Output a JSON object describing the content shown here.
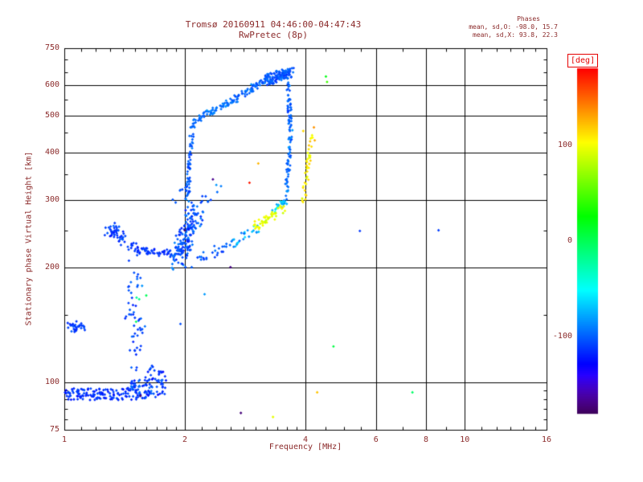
{
  "colors": {
    "background": "#ffffff",
    "axis": "#000000",
    "annotation_text": "#8b2a2a",
    "unit_label": "#e60000"
  },
  "chart_data": {
    "type": "scatter",
    "title": "Tromsø 20160911 04:46:00-04:47:43",
    "subtitle": "RwPretec (8p)",
    "stats": {
      "label": "Phases",
      "mean_sd_o": "mean, sd,O: -98.0, 15.7",
      "mean_sd_x": "mean, sd,X:  93.8, 22.3"
    },
    "xlabel": "Frequency [MHz]",
    "ylabel": "Stationary phase Virtual Height [km]",
    "xscale": "log",
    "yscale": "log",
    "xlim": [
      1,
      16
    ],
    "ylim": [
      75,
      750
    ],
    "xticks": [
      1,
      2,
      4,
      6,
      8,
      10,
      16
    ],
    "yticks": [
      75,
      100,
      200,
      300,
      400,
      500,
      600,
      750
    ],
    "xgrid": [
      2,
      4,
      6,
      8,
      10
    ],
    "ygrid": [
      100,
      200,
      300,
      400,
      500,
      600
    ],
    "x_minor": [
      1.1,
      1.2,
      1.3,
      1.4,
      1.5,
      1.6,
      1.7,
      1.8,
      1.9,
      2.2,
      2.4,
      2.6,
      2.8,
      3,
      3.2,
      3.4,
      3.6,
      3.8,
      4.5,
      5,
      5.5,
      7,
      9,
      11,
      12,
      13,
      14,
      15
    ],
    "y_minor": [
      80,
      85,
      90,
      95,
      150,
      250,
      350,
      450,
      550,
      650,
      700
    ],
    "grid": true,
    "legend": "colorbar-right",
    "marker": "diamond",
    "colorbar": {
      "unit": "[deg]",
      "min": -180,
      "max": 180,
      "ticks": [
        100,
        0,
        -100
      ]
    },
    "traces": [
      {
        "name": "e-band-a",
        "f0": 1.01,
        "h0": 93,
        "f1": 1.45,
        "h1": 93,
        "n": 120,
        "jf": 0.015,
        "jh": 0.035,
        "p": -115,
        "ps": 12
      },
      {
        "name": "e-band-b",
        "f0": 1.45,
        "h0": 95,
        "f1": 1.78,
        "h1": 98,
        "n": 95,
        "jf": 0.02,
        "jh": 0.06,
        "p": -110,
        "ps": 15
      },
      {
        "name": "e-band-tail",
        "f0": 1.6,
        "h0": 103,
        "f1": 1.75,
        "h1": 107,
        "n": 18,
        "jf": 0.02,
        "jh": 0.05,
        "p": -112,
        "ps": 12
      },
      {
        "name": "left-clump",
        "f0": 1.03,
        "h0": 139,
        "f1": 1.11,
        "h1": 141,
        "n": 30,
        "jf": 0.025,
        "jh": 0.03,
        "p": -110,
        "ps": 10
      },
      {
        "name": "vert-scatter-low",
        "f0": 1.47,
        "h0": 108,
        "f1": 1.56,
        "h1": 148,
        "n": 26,
        "jf": 0.03,
        "jh": 0.07,
        "p": -108,
        "ps": 14
      },
      {
        "name": "vert-scatter-high",
        "f0": 1.44,
        "h0": 150,
        "f1": 1.54,
        "h1": 195,
        "n": 24,
        "jf": 0.035,
        "jh": 0.06,
        "p": -103,
        "ps": 16
      },
      {
        "name": "green-specks",
        "f0": 1.5,
        "h0": 150,
        "f1": 1.56,
        "h1": 165,
        "n": 4,
        "jf": 0.03,
        "jh": 0.05,
        "p": -5,
        "ps": 25
      },
      {
        "name": "descender",
        "f0": 1.28,
        "h0": 250,
        "f1": 1.5,
        "h1": 226,
        "n": 36,
        "jf": 0.018,
        "jh": 0.03,
        "p": -112,
        "ps": 10
      },
      {
        "name": "descender-clump",
        "f0": 1.31,
        "h0": 252,
        "f1": 1.42,
        "h1": 240,
        "n": 18,
        "jf": 0.03,
        "jh": 0.05,
        "p": -110,
        "ps": 12
      },
      {
        "name": "flat-220",
        "f0": 1.5,
        "h0": 222,
        "f1": 1.82,
        "h1": 217,
        "n": 44,
        "jf": 0.015,
        "jh": 0.02,
        "p": -113,
        "ps": 9
      },
      {
        "name": "rise-to-clump",
        "f0": 1.82,
        "h0": 217,
        "f1": 1.97,
        "h1": 224,
        "n": 20,
        "jf": 0.015,
        "jh": 0.025,
        "p": -110,
        "ps": 10
      },
      {
        "name": "f-clump",
        "f0": 1.9,
        "h0": 205,
        "f1": 2.15,
        "h1": 288,
        "n": 160,
        "jf": 0.045,
        "jh": 0.06,
        "p": -105,
        "ps": 18
      },
      {
        "name": "f-vertical",
        "f0": 2.02,
        "h0": 290,
        "f1": 2.09,
        "h1": 478,
        "n": 70,
        "jf": 0.012,
        "jh": 0.03,
        "p": -100,
        "ps": 13
      },
      {
        "name": "cusp",
        "f0": 2.1,
        "h0": 480,
        "f1": 2.28,
        "h1": 505,
        "n": 20,
        "jf": 0.02,
        "jh": 0.02,
        "p": -95,
        "ps": 11
      },
      {
        "name": "upper-arc-1",
        "f0": 2.28,
        "h0": 505,
        "f1": 2.65,
        "h1": 548,
        "n": 42,
        "jf": 0.018,
        "jh": 0.018,
        "p": -92,
        "ps": 12
      },
      {
        "name": "upper-arc-2",
        "f0": 2.65,
        "h0": 548,
        "f1": 3.1,
        "h1": 610,
        "n": 48,
        "jf": 0.018,
        "jh": 0.018,
        "p": -97,
        "ps": 12
      },
      {
        "name": "top-cluster",
        "f0": 3.15,
        "h0": 618,
        "f1": 3.68,
        "h1": 648,
        "n": 130,
        "jf": 0.025,
        "jh": 0.03,
        "p": -102,
        "ps": 15
      },
      {
        "name": "right-descender-1",
        "f0": 3.6,
        "h0": 640,
        "f1": 3.68,
        "h1": 460,
        "n": 55,
        "jf": 0.01,
        "jh": 0.03,
        "p": -100,
        "ps": 12
      },
      {
        "name": "right-descender-2",
        "f0": 3.68,
        "h0": 460,
        "f1": 3.58,
        "h1": 305,
        "n": 50,
        "jf": 0.01,
        "jh": 0.03,
        "p": -95,
        "ps": 14
      },
      {
        "name": "loop-bottom-cyan",
        "f0": 3.58,
        "h0": 300,
        "f1": 3.32,
        "h1": 282,
        "n": 22,
        "jf": 0.012,
        "jh": 0.02,
        "p": -70,
        "ps": 25
      },
      {
        "name": "lower-branch-1",
        "f0": 2.18,
        "h0": 212,
        "f1": 2.6,
        "h1": 228,
        "n": 24,
        "jf": 0.02,
        "jh": 0.03,
        "p": -103,
        "ps": 14
      },
      {
        "name": "lower-branch-2",
        "f0": 2.6,
        "h0": 228,
        "f1": 3.0,
        "h1": 252,
        "n": 24,
        "jf": 0.02,
        "jh": 0.03,
        "p": -80,
        "ps": 22
      },
      {
        "name": "yellow-bottom",
        "f0": 3.0,
        "h0": 255,
        "f1": 3.55,
        "h1": 288,
        "n": 48,
        "jf": 0.018,
        "jh": 0.025,
        "p": 98,
        "ps": 16
      },
      {
        "name": "yellow-riser",
        "f0": 3.95,
        "h0": 300,
        "f1": 4.15,
        "h1": 438,
        "n": 40,
        "jf": 0.012,
        "jh": 0.035,
        "p": 108,
        "ps": 16
      },
      {
        "name": "sparse-right-of-vertical",
        "f0": 2.2,
        "h0": 300,
        "f1": 2.5,
        "h1": 318,
        "n": 8,
        "jf": 0.03,
        "jh": 0.05,
        "p": -100,
        "ps": 18
      },
      {
        "name": "sparse-left-of-vertical",
        "f0": 1.9,
        "h0": 300,
        "f1": 2.0,
        "h1": 330,
        "n": 6,
        "jf": 0.02,
        "jh": 0.05,
        "p": -105,
        "ps": 15
      }
    ],
    "singles": [
      [
        4.5,
        632,
        20
      ],
      [
        4.53,
        612,
        45
      ],
      [
        4.22,
        430,
        128
      ],
      [
        4.2,
        465,
        135
      ],
      [
        3.95,
        455,
        115
      ],
      [
        4.7,
        124,
        5
      ],
      [
        4.28,
        94,
        120
      ],
      [
        3.32,
        81,
        95
      ],
      [
        2.76,
        83,
        -172
      ],
      [
        7.4,
        94,
        -5
      ],
      [
        8.6,
        250,
        -110
      ],
      [
        5.47,
        249,
        -112
      ],
      [
        2.9,
        333,
        172
      ],
      [
        3.05,
        374,
        125
      ],
      [
        2.35,
        340,
        -168
      ],
      [
        1.95,
        142,
        -105
      ],
      [
        2.24,
        170,
        -82
      ],
      [
        2.6,
        200,
        -170
      ],
      [
        1.45,
        208,
        -110
      ],
      [
        1.52,
        215,
        -108
      ],
      [
        2.08,
        200,
        -100
      ],
      [
        2.0,
        250,
        -178
      ],
      [
        1.55,
        92,
        -175
      ]
    ]
  }
}
